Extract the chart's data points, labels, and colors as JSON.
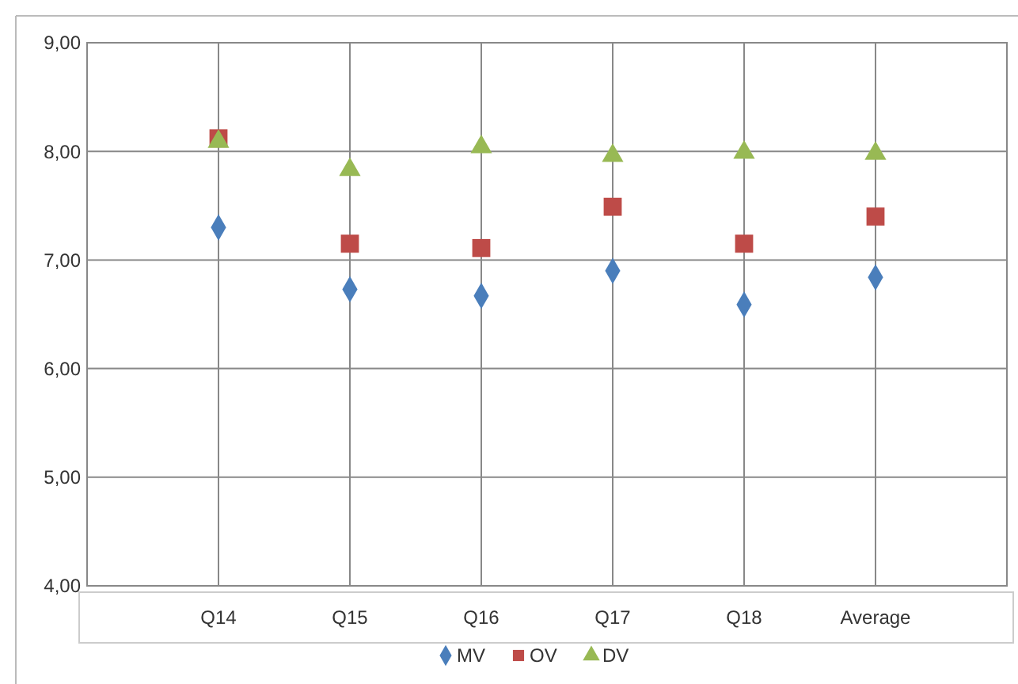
{
  "chart_data": {
    "type": "scatter",
    "categories": [
      "Q14",
      "Q15",
      "Q16",
      "Q17",
      "Q18",
      "Average"
    ],
    "series": [
      {
        "name": "MV",
        "color": "#4a7ebb",
        "marker": "diamond",
        "values": [
          7.3,
          6.73,
          6.67,
          6.9,
          6.59,
          6.84
        ]
      },
      {
        "name": "OV",
        "color": "#be4b48",
        "marker": "square",
        "values": [
          8.12,
          7.15,
          7.11,
          7.49,
          7.15,
          7.4
        ]
      },
      {
        "name": "DV",
        "color": "#98b954",
        "marker": "triangle",
        "values": [
          8.09,
          7.83,
          8.04,
          7.96,
          7.99,
          7.98
        ]
      }
    ],
    "ylim": [
      4,
      9
    ],
    "yticks": [
      {
        "value": 4,
        "label": "4,00"
      },
      {
        "value": 5,
        "label": "5,00"
      },
      {
        "value": 6,
        "label": "6,00"
      },
      {
        "value": 7,
        "label": "7,00"
      },
      {
        "value": 8,
        "label": "8,00"
      },
      {
        "value": 9,
        "label": "9,00"
      }
    ],
    "grid": true,
    "legend": "bottom"
  }
}
